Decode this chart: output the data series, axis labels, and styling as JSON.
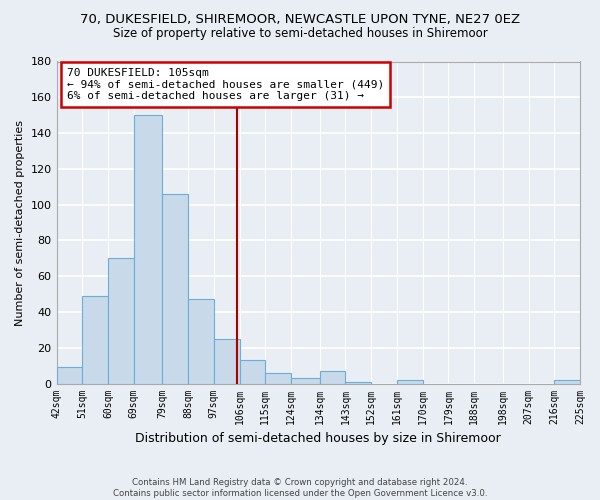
{
  "title": "70, DUKESFIELD, SHIREMOOR, NEWCASTLE UPON TYNE, NE27 0EZ",
  "subtitle": "Size of property relative to semi-detached houses in Shiremoor",
  "xlabel": "Distribution of semi-detached houses by size in Shiremoor",
  "ylabel": "Number of semi-detached properties",
  "bins": [
    42,
    51,
    60,
    69,
    79,
    88,
    97,
    106,
    115,
    124,
    134,
    143,
    152,
    161,
    170,
    179,
    188,
    198,
    207,
    216,
    225
  ],
  "bin_labels": [
    "42sqm",
    "51sqm",
    "60sqm",
    "69sqm",
    "79sqm",
    "88sqm",
    "97sqm",
    "106sqm",
    "115sqm",
    "124sqm",
    "134sqm",
    "143sqm",
    "152sqm",
    "161sqm",
    "170sqm",
    "179sqm",
    "188sqm",
    "198sqm",
    "207sqm",
    "216sqm",
    "225sqm"
  ],
  "counts": [
    9,
    49,
    70,
    150,
    106,
    47,
    25,
    13,
    6,
    3,
    7,
    1,
    0,
    2,
    0,
    0,
    0,
    0,
    0,
    2
  ],
  "bar_color": "#c8d9ea",
  "bar_edge_color": "#6baed6",
  "vline_x": 105,
  "vline_color": "#aa0000",
  "annotation_title": "70 DUKESFIELD: 105sqm",
  "annotation_line1": "← 94% of semi-detached houses are smaller (449)",
  "annotation_line2": "6% of semi-detached houses are larger (31) →",
  "annotation_box_color": "#ffffff",
  "annotation_box_edge": "#cc0000",
  "ylim": [
    0,
    180
  ],
  "yticks": [
    0,
    20,
    40,
    60,
    80,
    100,
    120,
    140,
    160,
    180
  ],
  "footer1": "Contains HM Land Registry data © Crown copyright and database right 2024.",
  "footer2": "Contains public sector information licensed under the Open Government Licence v3.0.",
  "bg_color": "#e8eef4",
  "grid_color": "#ffffff",
  "title_fontsize": 9.5,
  "subtitle_fontsize": 8.5,
  "ylabel_fontsize": 8,
  "xlabel_fontsize": 9,
  "tick_fontsize": 7,
  "annot_fontsize": 8
}
